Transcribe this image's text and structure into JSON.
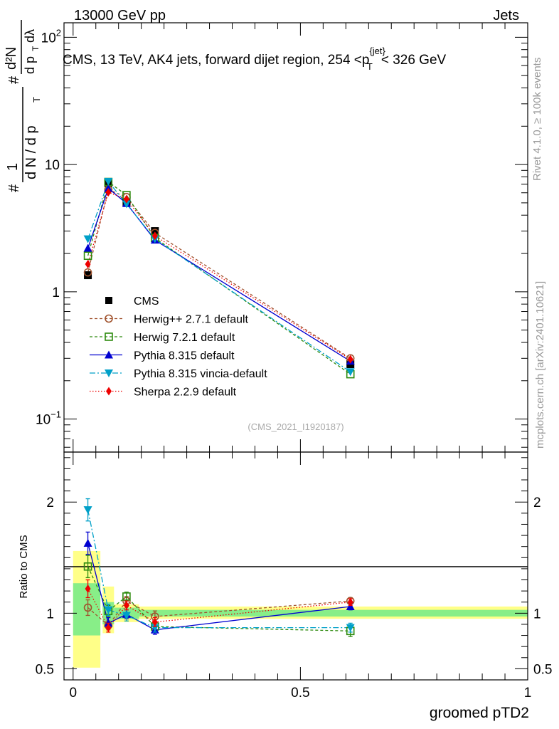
{
  "header": {
    "energy_label": "13000 GeV pp",
    "category_label": "Jets"
  },
  "side_labels": {
    "rivet": "Rivet 4.1.0, ≥ 100k events",
    "mcplots": "mcplots.cern.ch [arXiv:2401.10621]"
  },
  "chart_data": [
    {
      "type": "line",
      "panel": "main",
      "title": "CMS, 13 TeV, AK4 jets, forward dijet region, 254 <p_T^{jet}< 326 GeV",
      "ylabel": "1/(dN/dp_T) d²N/(dp_T dλ)",
      "ylabel_parts": {
        "hash": "#",
        "one": "1",
        "dN": "d N / d p",
        "T": "T",
        "d2N": "d²N",
        "dp": "d p",
        "dlambda": "dλ"
      },
      "yscale": "log",
      "ylim": [
        0.055,
        130
      ],
      "xlim": [
        -0.02,
        1.0
      ],
      "yticks": [
        {
          "value": 0.1,
          "base": "10",
          "exp": "−1"
        },
        {
          "value": 1,
          "base": "1",
          "exp": ""
        },
        {
          "value": 10,
          "base": "10",
          "exp": ""
        },
        {
          "value": 100,
          "base": "10",
          "exp": "2"
        }
      ],
      "watermark": "(CMS_2021_I1920187)",
      "legend_position": "middle-left",
      "x": [
        0.0325,
        0.0775,
        0.1175,
        0.18,
        0.61
      ],
      "bin_edges": [
        [
          0,
          0.065
        ],
        [
          0.065,
          0.09
        ],
        [
          0.09,
          0.145
        ],
        [
          0.145,
          0.215
        ],
        [
          0.215,
          1.0
        ]
      ],
      "series": [
        {
          "name": "CMS",
          "color": "#000000",
          "marker": "square-filled",
          "dash": "",
          "values": [
            1.35,
            7.15,
            5.0,
            3.0,
            0.27
          ]
        },
        {
          "name": "Herwig++ 2.7.1 default",
          "color": "#a0522d",
          "marker": "circle-open",
          "dash": "4,3",
          "values": [
            1.42,
            6.35,
            5.55,
            2.9,
            0.3
          ]
        },
        {
          "name": "Herwig 7.2.1 default",
          "color": "#2e8b0f",
          "marker": "square-open",
          "dash": "4,3",
          "values": [
            1.92,
            7.3,
            5.75,
            2.65,
            0.225
          ]
        },
        {
          "name": "Pythia 8.315 default",
          "color": "#0000d0",
          "marker": "triangle-up",
          "dash": "",
          "values": [
            2.2,
            6.5,
            4.95,
            2.55,
            0.285
          ]
        },
        {
          "name": "Pythia 8.315 vincia-default",
          "color": "#00a0c8",
          "marker": "triangle-down",
          "dash": "8,3,2,3",
          "values": [
            2.6,
            7.35,
            4.9,
            2.6,
            0.235
          ]
        },
        {
          "name": "Sherpa 2.2.9 default",
          "color": "#ee0000",
          "marker": "diamond",
          "dash": "1.5,2.5",
          "values": [
            1.65,
            6.05,
            5.35,
            2.75,
            0.295
          ]
        }
      ]
    },
    {
      "type": "line",
      "panel": "ratio",
      "ylabel": "Ratio to CMS",
      "xlabel": "groomed pTD2",
      "ylim": [
        0.4,
        2.45
      ],
      "xlim": [
        -0.02,
        1.0
      ],
      "yticks": [
        0.5,
        1,
        2
      ],
      "xticks": [
        0,
        0.5,
        1
      ],
      "xtick_labels": [
        "0",
        "0.5",
        "1"
      ],
      "ytick_labels": [
        "0.5",
        "1",
        "2"
      ],
      "uncertainty_bands": [
        {
          "x0": 0,
          "x1": 0.06,
          "stat_lo": 0.8,
          "stat_hi": 1.27,
          "total_lo": 0.51,
          "total_hi": 1.56
        },
        {
          "x0": 0.065,
          "x1": 0.09,
          "stat_lo": 0.9,
          "stat_hi": 1.1,
          "total_lo": 0.82,
          "total_hi": 1.24
        },
        {
          "x0": 0.09,
          "x1": 0.145,
          "stat_lo": 0.95,
          "stat_hi": 1.05,
          "total_lo": 0.92,
          "total_hi": 1.08
        },
        {
          "x0": 0.145,
          "x1": 1.0,
          "stat_lo": 0.97,
          "stat_hi": 1.03,
          "total_lo": 0.95,
          "total_hi": 1.06
        }
      ],
      "series": [
        {
          "name": "Herwig++ 2.7.1 default",
          "values": [
            1.05,
            0.89,
            1.11,
            0.97,
            1.11
          ],
          "errors": [
            0.07,
            0.04,
            0.04,
            0.05,
            0.03
          ]
        },
        {
          "name": "Herwig 7.2.1 default",
          "values": [
            1.42,
            1.02,
            1.15,
            0.88,
            0.84
          ],
          "errors": [
            0.1,
            0.05,
            0.04,
            0.04,
            0.05
          ]
        },
        {
          "name": "Pythia 8.315 default",
          "values": [
            1.63,
            0.91,
            0.99,
            0.85,
            1.06
          ],
          "errors": [
            0.1,
            0.05,
            0.04,
            0.04,
            0.03
          ]
        },
        {
          "name": "Pythia 8.315 vincia-default",
          "values": [
            1.93,
            1.03,
            0.98,
            0.87,
            0.87
          ],
          "errors": [
            0.1,
            0.05,
            0.05,
            0.04,
            0.04
          ]
        },
        {
          "name": "Sherpa 2.2.9 default",
          "values": [
            1.22,
            0.87,
            1.07,
            0.92,
            1.1
          ],
          "errors": [
            0.08,
            0.04,
            0.04,
            0.04,
            0.03
          ]
        }
      ]
    }
  ]
}
